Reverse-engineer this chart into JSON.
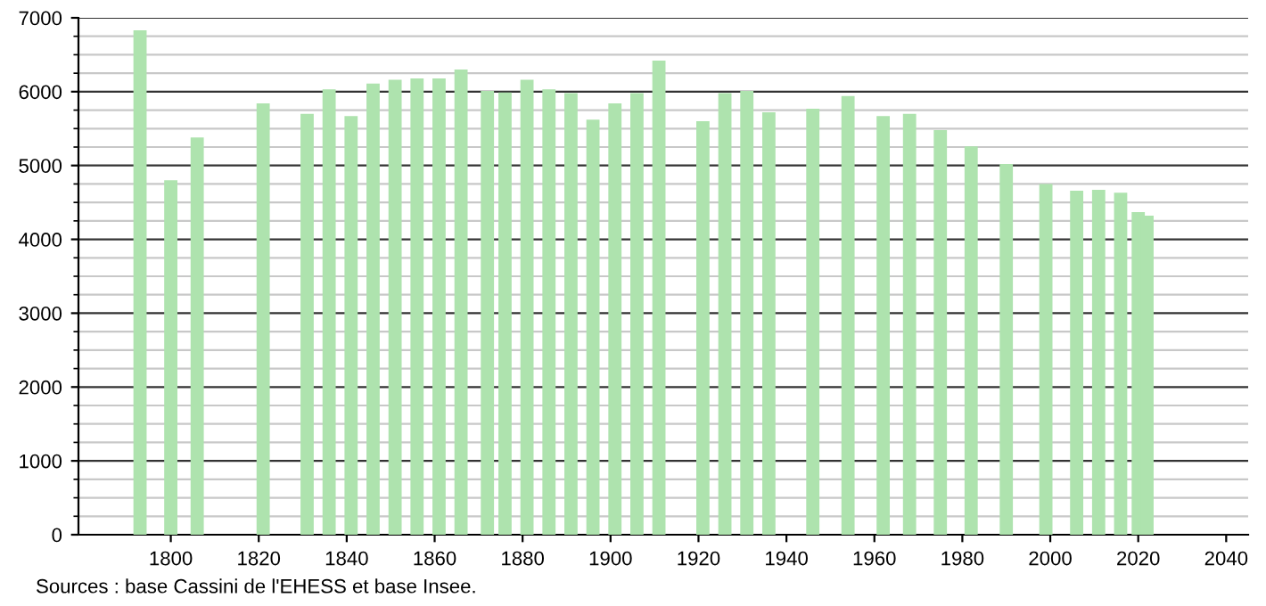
{
  "chart_data": {
    "type": "bar",
    "color": "#aee3ae",
    "x": [
      1793,
      1800,
      1806,
      1821,
      1831,
      1836,
      1841,
      1846,
      1851,
      1856,
      1861,
      1866,
      1872,
      1876,
      1881,
      1886,
      1891,
      1896,
      1901,
      1906,
      1911,
      1921,
      1926,
      1931,
      1936,
      1946,
      1954,
      1962,
      1968,
      1975,
      1982,
      1990,
      1999,
      2006,
      2011,
      2016,
      2020,
      2022
    ],
    "values": [
      6830,
      4800,
      5380,
      5840,
      5700,
      6030,
      5670,
      6110,
      6160,
      6180,
      6180,
      6300,
      6010,
      5990,
      6160,
      6030,
      5980,
      5620,
      5840,
      5980,
      6420,
      5600,
      5980,
      6010,
      5720,
      5770,
      5940,
      5670,
      5700,
      5480,
      5260,
      5020,
      4750,
      4660,
      4670,
      4630,
      4370,
      4320
    ],
    "xlim": [
      1779,
      2045
    ],
    "xticks": [
      1800,
      1820,
      1840,
      1860,
      1880,
      1900,
      1920,
      1940,
      1960,
      1980,
      2000,
      2020,
      2040
    ],
    "ylim": [
      0,
      7000
    ],
    "yticks": [
      0,
      1000,
      2000,
      3000,
      4000,
      5000,
      6000,
      7000
    ],
    "grid": "y",
    "annotations": [
      "Sources : base Cassini de l'EHESS et base Insee."
    ]
  }
}
